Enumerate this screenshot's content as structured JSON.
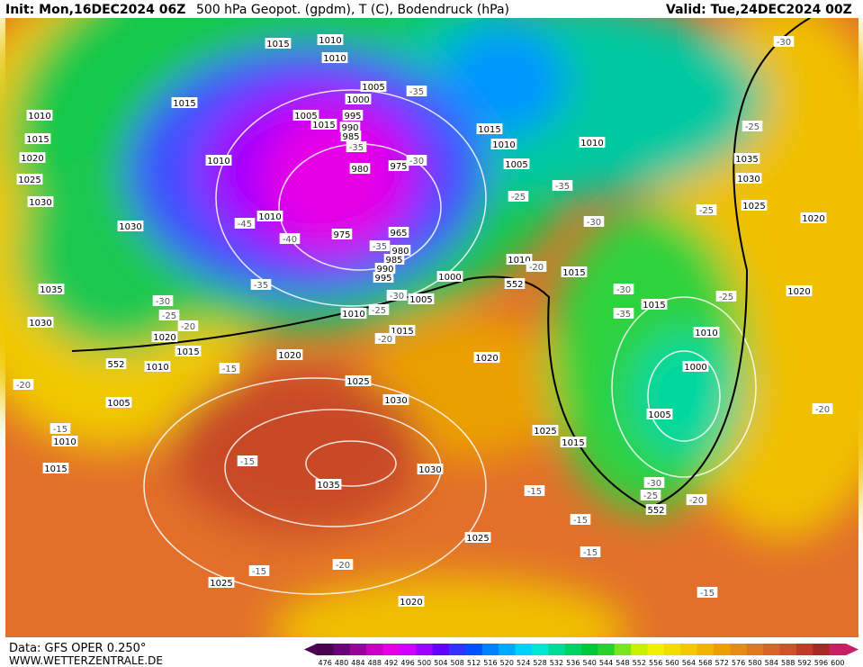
{
  "header": {
    "init": "Init: Mon,16DEC2024 06Z",
    "title": "500 hPa Geopot. (gpdm), T (C), Bodendruck (hPa)",
    "valid": "Valid: Tue,24DEC2024 00Z"
  },
  "footer": {
    "source": "Data: GFS OPER 0.250°",
    "site": "WWW.WETTERZENTRALE.DE"
  },
  "map": {
    "isobars": [
      "1015",
      "1010",
      "1010",
      "1015",
      "1010",
      "1015",
      "1020",
      "1025",
      "1030",
      "1030",
      "1035",
      "1030",
      "1020",
      "1015",
      "1010",
      "1005",
      "1010",
      "1015",
      "1010",
      "1010",
      "975",
      "980",
      "975",
      "965",
      "980",
      "985",
      "990",
      "995",
      "1005",
      "1000",
      "995",
      "990",
      "985",
      "1005",
      "1015",
      "1000",
      "1005",
      "1010",
      "1015",
      "1020",
      "1025",
      "1030",
      "1035",
      "1030",
      "1025",
      "1025",
      "1020",
      "1020",
      "1025",
      "1015",
      "1015",
      "1010",
      "1005",
      "1010",
      "1015",
      "1010",
      "1035",
      "1030",
      "1025",
      "1020",
      "1020",
      "1015",
      "1010",
      "1000",
      "1005"
    ],
    "temperatures": [
      "-35",
      "-30",
      "-25",
      "-35",
      "-30",
      "-25",
      "-35",
      "-25",
      "-30",
      "-45",
      "-40",
      "-35",
      "-20",
      "-30",
      "-25",
      "-35",
      "-35",
      "-30",
      "-25",
      "-30",
      "-25",
      "-20",
      "-20",
      "-15",
      "-20",
      "-15",
      "-15",
      "-15",
      "-15",
      "-15",
      "-20",
      "-15",
      "-15",
      "-20",
      "-30",
      "-25",
      "-20"
    ],
    "geopotential": [
      "552",
      "552",
      "552"
    ]
  },
  "legend": {
    "labels": [
      476,
      480,
      484,
      488,
      492,
      496,
      500,
      504,
      508,
      512,
      516,
      520,
      524,
      528,
      532,
      536,
      540,
      544,
      548,
      552,
      556,
      560,
      564,
      568,
      572,
      576,
      580,
      584,
      588,
      592,
      596,
      600
    ],
    "colors": [
      "#4b0050",
      "#6a0078",
      "#9b009b",
      "#c800c8",
      "#e600e6",
      "#d200ff",
      "#a000ff",
      "#6400ff",
      "#3232ff",
      "#0050ff",
      "#0082ff",
      "#00aaff",
      "#00d2ff",
      "#00e6d2",
      "#00dc96",
      "#00d264",
      "#00c83c",
      "#28d228",
      "#78e61e",
      "#c8f000",
      "#f0f000",
      "#f5dc00",
      "#f5c800",
      "#f0b400",
      "#eba000",
      "#e68c14",
      "#e0781e",
      "#d86428",
      "#d05028",
      "#c03c28",
      "#a82828",
      "#c81e64"
    ]
  }
}
